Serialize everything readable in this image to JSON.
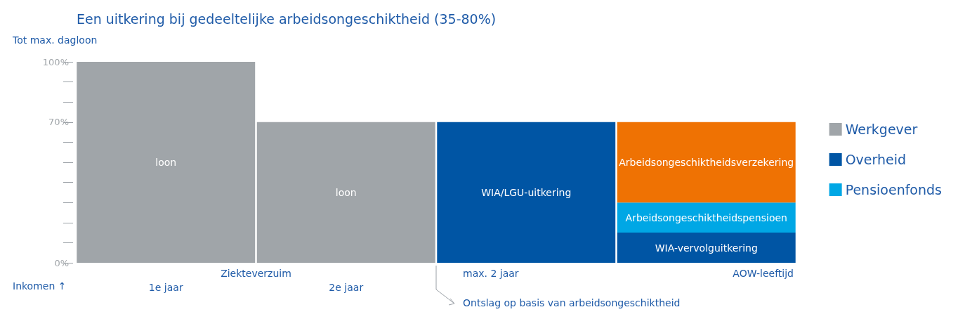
{
  "chart_data": {
    "type": "bar",
    "stacked": true,
    "title": "Een uitkering bij gedeeltelijke arbeidsongeschiktheid (35-80%)",
    "ylabel": "Tot max. dagloon",
    "categories": [
      "1e jaar",
      "2e jaar",
      null,
      null
    ],
    "series": [
      {
        "name": "Werkgever",
        "color": "#a0a5a9",
        "values": [
          100,
          70,
          null,
          null
        ],
        "value_labels": [
          "loon",
          "loon",
          null,
          null
        ]
      },
      {
        "name": "Overheid",
        "color": "#0055a4",
        "values": [
          null,
          null,
          70,
          15
        ],
        "value_labels": [
          null,
          null,
          "WIA/LGU-uitkering",
          "WIA-vervolguitkering"
        ]
      },
      {
        "name": "Pensioenfonds",
        "color": "#00a7e5",
        "values": [
          null,
          null,
          null,
          15
        ],
        "value_labels": [
          null,
          null,
          null,
          "Arbeidsongeschiktheidspensioen"
        ]
      },
      {
        "color": "#ef7203",
        "values": [
          null,
          null,
          null,
          40
        ],
        "value_labels": [
          null,
          null,
          null,
          "Arbeidsongeschiktheidsverzekering"
        ]
      }
    ],
    "ylim": [
      0,
      100
    ],
    "yticks": [
      {
        "value": 0,
        "label": "0%"
      },
      {
        "value": 10,
        "label": null
      },
      {
        "value": 20,
        "label": null
      },
      {
        "value": 30,
        "label": null
      },
      {
        "value": 40,
        "label": null
      },
      {
        "value": 50,
        "label": null
      },
      {
        "value": 60,
        "label": null
      },
      {
        "value": 70,
        "label": "70%"
      },
      {
        "value": 80,
        "label": null
      },
      {
        "value": 90,
        "label": null
      },
      {
        "value": 100,
        "label": "100%"
      }
    ],
    "grid": false,
    "legend": "right",
    "annotations": [
      "Ziekteverzuim",
      "max. 2 jaar",
      "AOW-leeftijd",
      "Inkomen ↑",
      "Ontslag op basis van arbeidsongeschiktheid"
    ]
  }
}
